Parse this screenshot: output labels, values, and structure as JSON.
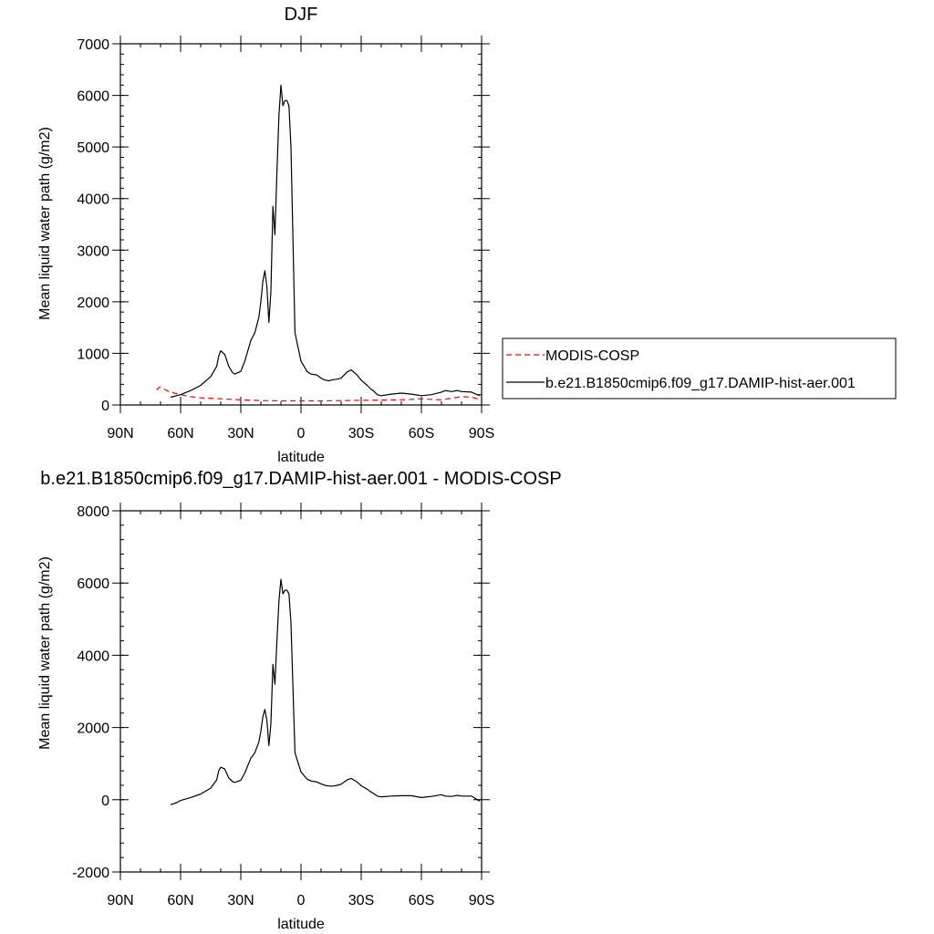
{
  "chart_data": [
    {
      "type": "line",
      "title": "DJF",
      "xlabel": "latitude",
      "ylabel": "Mean liquid water path (g/m2)",
      "xlim": [
        90,
        -90
      ],
      "ylim": [
        0,
        7000
      ],
      "y_major_ticks": [
        0,
        1000,
        2000,
        3000,
        4000,
        5000,
        6000,
        7000
      ],
      "y_minor_step": 200,
      "x_ticks": [
        90,
        60,
        30,
        0,
        -30,
        -60,
        -90
      ],
      "x_tick_labels": [
        "90N",
        "60N",
        "30N",
        "0",
        "30S",
        "60S",
        "90S"
      ],
      "legend_placement": "right",
      "series": [
        {
          "name": "MODIS-COSP",
          "color": "#ff0000",
          "dash": "dashed",
          "x": [
            72,
            71,
            70,
            68,
            65,
            60,
            55,
            50,
            40,
            30,
            20,
            10,
            0,
            -10,
            -20,
            -30,
            -40,
            -50,
            -55,
            -60,
            -65,
            -70,
            -75,
            -80,
            -85,
            -89
          ],
          "y": [
            290,
            330,
            350,
            300,
            250,
            200,
            160,
            140,
            120,
            100,
            85,
            80,
            80,
            80,
            85,
            90,
            95,
            100,
            110,
            120,
            110,
            100,
            130,
            160,
            150,
            110
          ]
        },
        {
          "name": "b.e21.B1850cmip6.f09_g17.DAMIP-hist-aer.001",
          "color": "#000000",
          "dash": "solid",
          "x": [
            65,
            62,
            60,
            55,
            50,
            45,
            42,
            41,
            40,
            38,
            36,
            34,
            33,
            30,
            28,
            25,
            23,
            21,
            20,
            19,
            18,
            17,
            16,
            15,
            14,
            13,
            12,
            11,
            10,
            9,
            8,
            7,
            6,
            5,
            3,
            0,
            -3,
            -5,
            -8,
            -10,
            -12,
            -14,
            -16,
            -18,
            -20,
            -22,
            -23,
            -25,
            -28,
            -30,
            -33,
            -35,
            -36,
            -38,
            -40,
            -45,
            -50,
            -55,
            -60,
            -65,
            -70,
            -72,
            -75,
            -78,
            -80,
            -85,
            -89
          ],
          "y": [
            150,
            180,
            200,
            280,
            380,
            550,
            750,
            950,
            1050,
            980,
            750,
            620,
            600,
            650,
            850,
            1250,
            1400,
            1700,
            2000,
            2400,
            2600,
            2300,
            1600,
            2200,
            3850,
            3300,
            4500,
            5600,
            6200,
            5800,
            5900,
            5900,
            5800,
            5000,
            1400,
            850,
            650,
            600,
            580,
            520,
            480,
            470,
            490,
            500,
            520,
            600,
            640,
            680,
            580,
            480,
            380,
            300,
            280,
            200,
            180,
            210,
            230,
            210,
            180,
            200,
            250,
            280,
            260,
            280,
            260,
            250,
            180
          ]
        }
      ]
    },
    {
      "type": "line",
      "title": "b.e21.B1850cmip6.f09_g17.DAMIP-hist-aer.001 - MODIS-COSP",
      "xlabel": "latitude",
      "ylabel": "Mean liquid water path (g/m2)",
      "xlim": [
        90,
        -90
      ],
      "ylim": [
        -2000,
        8000
      ],
      "y_major_ticks": [
        -2000,
        0,
        2000,
        4000,
        6000,
        8000
      ],
      "y_minor_step": 400,
      "x_ticks": [
        90,
        60,
        30,
        0,
        -30,
        -60,
        -90
      ],
      "x_tick_labels": [
        "90N",
        "60N",
        "30N",
        "0",
        "30S",
        "60S",
        "90S"
      ],
      "series": [
        {
          "color": "#000000",
          "dash": "solid",
          "x": [
            65,
            62,
            60,
            55,
            50,
            45,
            42,
            41,
            40,
            38,
            36,
            34,
            33,
            30,
            28,
            25,
            23,
            21,
            20,
            19,
            18,
            17,
            16,
            15,
            14,
            13,
            12,
            11,
            10,
            9,
            8,
            7,
            6,
            5,
            3,
            0,
            -3,
            -5,
            -8,
            -10,
            -12,
            -14,
            -16,
            -18,
            -20,
            -22,
            -23,
            -25,
            -28,
            -30,
            -33,
            -35,
            -36,
            -38,
            -40,
            -45,
            -50,
            -55,
            -60,
            -65,
            -70,
            -72,
            -75,
            -78,
            -80,
            -85,
            -89
          ],
          "y": [
            -140,
            -80,
            -20,
            60,
            160,
            320,
            550,
            800,
            900,
            850,
            600,
            500,
            480,
            540,
            740,
            1150,
            1300,
            1600,
            1900,
            2300,
            2500,
            2200,
            1500,
            2100,
            3750,
            3200,
            4400,
            5500,
            6100,
            5700,
            5800,
            5800,
            5700,
            4900,
            1300,
            770,
            570,
            520,
            490,
            440,
            400,
            380,
            380,
            400,
            430,
            510,
            550,
            590,
            490,
            390,
            290,
            210,
            180,
            100,
            80,
            100,
            110,
            110,
            60,
            90,
            140,
            100,
            90,
            120,
            100,
            100,
            -40
          ]
        }
      ]
    }
  ]
}
